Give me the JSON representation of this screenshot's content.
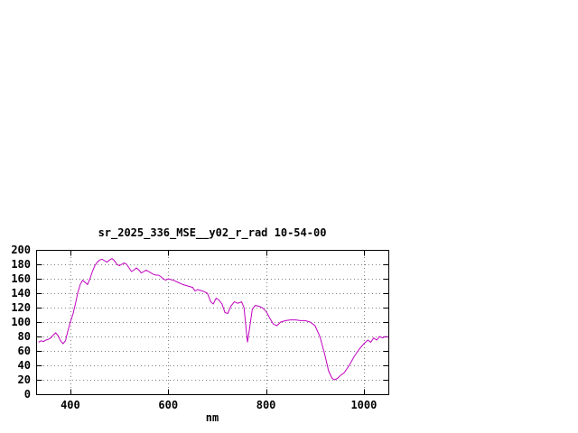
{
  "page": {
    "background": "#ffffff"
  },
  "chart_data": {
    "type": "line",
    "title": "sr_2025_336_MSE__y02_r_rad 10-54-00",
    "xlabel": "nm",
    "ylabel": "",
    "xlim": [
      330,
      1050
    ],
    "ylim": [
      0,
      200
    ],
    "xticks": [
      400,
      600,
      800,
      1000
    ],
    "yticks": [
      0,
      20,
      40,
      60,
      80,
      100,
      120,
      140,
      160,
      180,
      200
    ],
    "grid": true,
    "legend": "none",
    "line_color": "#c000c0",
    "series": [
      {
        "name": "sr_2025_336_MSE__y02_r_rad",
        "points": [
          [
            335,
            72
          ],
          [
            340,
            74
          ],
          [
            345,
            73
          ],
          [
            350,
            75
          ],
          [
            355,
            76
          ],
          [
            360,
            78
          ],
          [
            365,
            82
          ],
          [
            370,
            85
          ],
          [
            375,
            81
          ],
          [
            380,
            74
          ],
          [
            385,
            70
          ],
          [
            390,
            74
          ],
          [
            395,
            88
          ],
          [
            400,
            100
          ],
          [
            405,
            110
          ],
          [
            410,
            124
          ],
          [
            415,
            140
          ],
          [
            420,
            152
          ],
          [
            425,
            158
          ],
          [
            430,
            155
          ],
          [
            435,
            152
          ],
          [
            440,
            160
          ],
          [
            445,
            170
          ],
          [
            450,
            178
          ],
          [
            455,
            183
          ],
          [
            460,
            186
          ],
          [
            465,
            187
          ],
          [
            470,
            185
          ],
          [
            475,
            183
          ],
          [
            480,
            186
          ],
          [
            485,
            188
          ],
          [
            490,
            185
          ],
          [
            495,
            180
          ],
          [
            500,
            178
          ],
          [
            505,
            180
          ],
          [
            510,
            182
          ],
          [
            515,
            180
          ],
          [
            520,
            175
          ],
          [
            525,
            170
          ],
          [
            530,
            172
          ],
          [
            535,
            175
          ],
          [
            540,
            172
          ],
          [
            545,
            168
          ],
          [
            550,
            170
          ],
          [
            555,
            172
          ],
          [
            560,
            170
          ],
          [
            565,
            168
          ],
          [
            570,
            166
          ],
          [
            575,
            165
          ],
          [
            580,
            165
          ],
          [
            585,
            163
          ],
          [
            590,
            160
          ],
          [
            595,
            158
          ],
          [
            600,
            160
          ],
          [
            610,
            158
          ],
          [
            620,
            155
          ],
          [
            630,
            152
          ],
          [
            640,
            150
          ],
          [
            650,
            148
          ],
          [
            655,
            143
          ],
          [
            660,
            145
          ],
          [
            670,
            143
          ],
          [
            680,
            140
          ],
          [
            687,
            128
          ],
          [
            692,
            125
          ],
          [
            698,
            133
          ],
          [
            703,
            131
          ],
          [
            710,
            125
          ],
          [
            716,
            113
          ],
          [
            722,
            112
          ],
          [
            728,
            122
          ],
          [
            735,
            128
          ],
          [
            742,
            126
          ],
          [
            750,
            128
          ],
          [
            755,
            120
          ],
          [
            758,
            100
          ],
          [
            762,
            72
          ],
          [
            766,
            90
          ],
          [
            772,
            118
          ],
          [
            778,
            123
          ],
          [
            785,
            122
          ],
          [
            792,
            120
          ],
          [
            800,
            115
          ],
          [
            808,
            105
          ],
          [
            815,
            97
          ],
          [
            822,
            95
          ],
          [
            830,
            100
          ],
          [
            840,
            102
          ],
          [
            850,
            103
          ],
          [
            860,
            103
          ],
          [
            870,
            102
          ],
          [
            880,
            102
          ],
          [
            890,
            100
          ],
          [
            900,
            95
          ],
          [
            910,
            80
          ],
          [
            920,
            55
          ],
          [
            928,
            32
          ],
          [
            935,
            22
          ],
          [
            940,
            20
          ],
          [
            946,
            22
          ],
          [
            952,
            26
          ],
          [
            960,
            30
          ],
          [
            970,
            40
          ],
          [
            980,
            52
          ],
          [
            990,
            62
          ],
          [
            1000,
            70
          ],
          [
            1008,
            75
          ],
          [
            1014,
            72
          ],
          [
            1020,
            78
          ],
          [
            1026,
            75
          ],
          [
            1032,
            80
          ],
          [
            1038,
            78
          ],
          [
            1044,
            80
          ],
          [
            1050,
            79
          ]
        ]
      }
    ]
  }
}
